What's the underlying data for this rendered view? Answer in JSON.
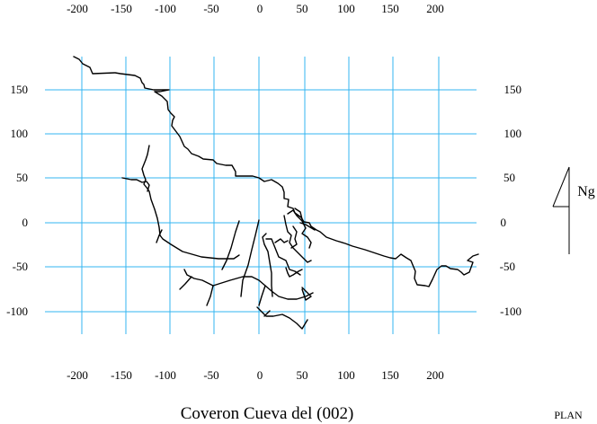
{
  "title": "Coveron Cueva del (002)",
  "view_label": "PLAN",
  "north_label": "Ng",
  "x_ticks": [
    "-200",
    "-150",
    "-100",
    "-50",
    "0",
    "50",
    "100",
    "150",
    "200"
  ],
  "y_ticks": [
    "150",
    "100",
    "50",
    "0",
    "-50",
    "-100"
  ],
  "colors": {
    "grid": "#33b5f0",
    "survey_line": "#000000",
    "background": "#ffffff"
  }
}
